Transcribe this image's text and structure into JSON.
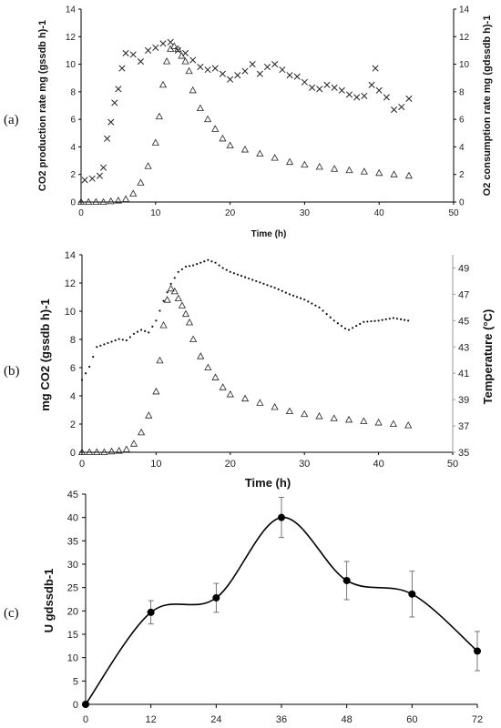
{
  "chart_data": [
    {
      "panel": "(a)",
      "type": "scatter",
      "title": "",
      "xlabel": "Time  (h)",
      "ylabel_left": "CO2 production rate mg (gssdb h)-1",
      "ylabel_right": "O2 consumption rate mg (gdssdb h)-1",
      "xlim": [
        0,
        50
      ],
      "ylim_left": [
        0,
        14
      ],
      "ylim_right": [
        0,
        14
      ],
      "x_ticks": [
        "0",
        "10",
        "20",
        "30",
        "40",
        "50"
      ],
      "y_ticks_left": [
        "0",
        "2",
        "4",
        "6",
        "8",
        "10",
        "12",
        "14"
      ],
      "y_ticks_right": [
        "0",
        "2",
        "4",
        "6",
        "8",
        "10",
        "12",
        "14"
      ],
      "grid": false,
      "legend": "none",
      "series": [
        {
          "marker": "triangle",
          "points": [
            [
              0,
              0
            ],
            [
              1,
              0
            ],
            [
              2,
              0
            ],
            [
              3,
              0
            ],
            [
              4,
              0.05
            ],
            [
              5,
              0.1
            ],
            [
              6,
              0.2
            ],
            [
              7,
              0.6
            ],
            [
              8,
              1.4
            ],
            [
              9,
              2.6
            ],
            [
              10,
              4.3
            ],
            [
              10.5,
              6.2
            ],
            [
              11,
              8.5
            ],
            [
              11.5,
              10.2
            ],
            [
              12,
              11.1
            ],
            [
              12.5,
              11.3
            ],
            [
              13,
              11.1
            ],
            [
              13.5,
              10.6
            ],
            [
              14,
              10.2
            ],
            [
              14.5,
              9.5
            ],
            [
              15,
              8.1
            ],
            [
              16,
              6.8
            ],
            [
              17,
              6.0
            ],
            [
              18,
              5.3
            ],
            [
              19,
              4.6
            ],
            [
              20,
              4.1
            ],
            [
              22,
              3.8
            ],
            [
              24,
              3.5
            ],
            [
              26,
              3.2
            ],
            [
              28,
              2.9
            ],
            [
              30,
              2.7
            ],
            [
              32,
              2.55
            ],
            [
              34,
              2.4
            ],
            [
              36,
              2.3
            ],
            [
              38,
              2.2
            ],
            [
              40,
              2.1
            ],
            [
              42,
              2.0
            ],
            [
              44,
              1.9
            ]
          ]
        },
        {
          "marker": "x",
          "points": [
            [
              0.5,
              1.6
            ],
            [
              1.5,
              1.7
            ],
            [
              2.5,
              1.9
            ],
            [
              3,
              2.5
            ],
            [
              3.5,
              4.6
            ],
            [
              4,
              5.8
            ],
            [
              4.5,
              7.2
            ],
            [
              5,
              8.2
            ],
            [
              5.5,
              9.7
            ],
            [
              6,
              10.8
            ],
            [
              7,
              10.7
            ],
            [
              8,
              10.2
            ],
            [
              9,
              11.0
            ],
            [
              10,
              11.2
            ],
            [
              11,
              11.5
            ],
            [
              12,
              11.6
            ],
            [
              13,
              11.0
            ],
            [
              14,
              10.8
            ],
            [
              15,
              10.3
            ],
            [
              16,
              9.8
            ],
            [
              17,
              9.6
            ],
            [
              18,
              9.7
            ],
            [
              19,
              9.3
            ],
            [
              20,
              8.9
            ],
            [
              21,
              9.2
            ],
            [
              22,
              9.5
            ],
            [
              23,
              10.0
            ],
            [
              24,
              9.3
            ],
            [
              25,
              9.8
            ],
            [
              26,
              10.0
            ],
            [
              27,
              9.6
            ],
            [
              28,
              9.2
            ],
            [
              29,
              9.1
            ],
            [
              30,
              8.7
            ],
            [
              31,
              8.3
            ],
            [
              32,
              8.2
            ],
            [
              33,
              8.5
            ],
            [
              34,
              8.3
            ],
            [
              35,
              8.1
            ],
            [
              36,
              7.8
            ],
            [
              37,
              7.6
            ],
            [
              38,
              7.7
            ],
            [
              39,
              8.5
            ],
            [
              39.5,
              9.7
            ],
            [
              40,
              8.1
            ],
            [
              41,
              7.6
            ],
            [
              42,
              6.7
            ],
            [
              43,
              6.9
            ],
            [
              44,
              7.5
            ]
          ]
        }
      ]
    },
    {
      "panel": "(b)",
      "type": "scatter",
      "title": "",
      "xlabel": "Time (h)",
      "ylabel_left": "mg CO2 (gssdb h)-1",
      "ylabel_right": "Temperature (°C)",
      "xlim": [
        0,
        50
      ],
      "ylim_left": [
        0,
        14
      ],
      "ylim_right": [
        35,
        50
      ],
      "x_ticks": [
        "0",
        "10",
        "20",
        "30",
        "40",
        "50"
      ],
      "y_ticks_left": [
        "0",
        "2",
        "4",
        "6",
        "8",
        "10",
        "12",
        "14"
      ],
      "y_ticks_right": [
        "35",
        "37",
        "39",
        "41",
        "43",
        "45",
        "47",
        "49"
      ],
      "grid": false,
      "legend": "none",
      "series": [
        {
          "marker": "triangle",
          "axis": "left",
          "points": [
            [
              0,
              0
            ],
            [
              1,
              0
            ],
            [
              2,
              0
            ],
            [
              3,
              0
            ],
            [
              4,
              0.05
            ],
            [
              5,
              0.1
            ],
            [
              6,
              0.2
            ],
            [
              7,
              0.6
            ],
            [
              8,
              1.4
            ],
            [
              9,
              2.6
            ],
            [
              10,
              4.3
            ],
            [
              10.5,
              6.5
            ],
            [
              11,
              9.0
            ],
            [
              11.5,
              10.8
            ],
            [
              12,
              11.6
            ],
            [
              12.5,
              11.4
            ],
            [
              13,
              10.9
            ],
            [
              13.5,
              10.4
            ],
            [
              14,
              9.8
            ],
            [
              14.5,
              9.2
            ],
            [
              15,
              8.0
            ],
            [
              16,
              6.8
            ],
            [
              17,
              6.0
            ],
            [
              18,
              5.3
            ],
            [
              19,
              4.6
            ],
            [
              20,
              4.1
            ],
            [
              22,
              3.8
            ],
            [
              24,
              3.5
            ],
            [
              26,
              3.2
            ],
            [
              28,
              2.9
            ],
            [
              30,
              2.7
            ],
            [
              32,
              2.55
            ],
            [
              34,
              2.4
            ],
            [
              36,
              2.3
            ],
            [
              38,
              2.2
            ],
            [
              40,
              2.1
            ],
            [
              42,
              2.0
            ],
            [
              44,
              1.9
            ]
          ]
        },
        {
          "marker": "dotted-line",
          "axis": "right",
          "points": [
            [
              0,
              40.5
            ],
            [
              1,
              41.5
            ],
            [
              2,
              43.0
            ],
            [
              3,
              43.2
            ],
            [
              4,
              43.4
            ],
            [
              5,
              43.6
            ],
            [
              6,
              43.5
            ],
            [
              7,
              44.0
            ],
            [
              8,
              44.3
            ],
            [
              9,
              44.1
            ],
            [
              10,
              45.0
            ],
            [
              11,
              46.5
            ],
            [
              12,
              47.8
            ],
            [
              13,
              48.7
            ],
            [
              14,
              49.1
            ],
            [
              15,
              49.2
            ],
            [
              16,
              49.4
            ],
            [
              17,
              49.6
            ],
            [
              18,
              49.4
            ],
            [
              19,
              49.0
            ],
            [
              20,
              48.7
            ],
            [
              22,
              48.3
            ],
            [
              24,
              47.9
            ],
            [
              26,
              47.5
            ],
            [
              28,
              47.0
            ],
            [
              30,
              46.6
            ],
            [
              32,
              46.0
            ],
            [
              34,
              45.0
            ],
            [
              35.5,
              44.4
            ],
            [
              36,
              44.3
            ],
            [
              37,
              44.6
            ],
            [
              38,
              44.9
            ],
            [
              40,
              45.0
            ],
            [
              42,
              45.2
            ],
            [
              44,
              45.0
            ]
          ]
        }
      ]
    },
    {
      "panel": "(c)",
      "type": "line",
      "title": "",
      "xlabel": "",
      "ylabel": "U gdssdb-1",
      "xlim": [
        0,
        72
      ],
      "ylim": [
        0,
        45
      ],
      "x_ticks": [
        "0",
        "12",
        "24",
        "36",
        "48",
        "60",
        "72"
      ],
      "y_ticks": [
        "0",
        "5",
        "10",
        "15",
        "20",
        "25",
        "30",
        "35",
        "40",
        "45"
      ],
      "grid": false,
      "legend": "none",
      "x": [
        0,
        12,
        24,
        36,
        48,
        60,
        72
      ],
      "values": [
        0,
        19.7,
        22.8,
        40.0,
        26.5,
        23.6,
        11.4
      ],
      "error": [
        0,
        2.5,
        3.1,
        4.3,
        4.1,
        4.9,
        4.2
      ]
    }
  ],
  "labels": {
    "panel_a": "(a)",
    "panel_b": "(b)",
    "panel_c": "(c)",
    "a_ylabel_left": "CO2 production rate mg (gssdb h)-1",
    "a_ylabel_right": "O2 consumption rate mg (gdssdb h)-1",
    "a_xlabel": "Time  (h)",
    "b_ylabel_left": "mg CO2 (gssdb h)-1",
    "b_ylabel_right": "Temperature (°C)",
    "b_xlabel": "Time (h)",
    "c_ylabel": "U gdssdb-1"
  },
  "colors": {
    "axis": "#000000",
    "marker": "#222222",
    "right_axis_b": "#999999"
  }
}
